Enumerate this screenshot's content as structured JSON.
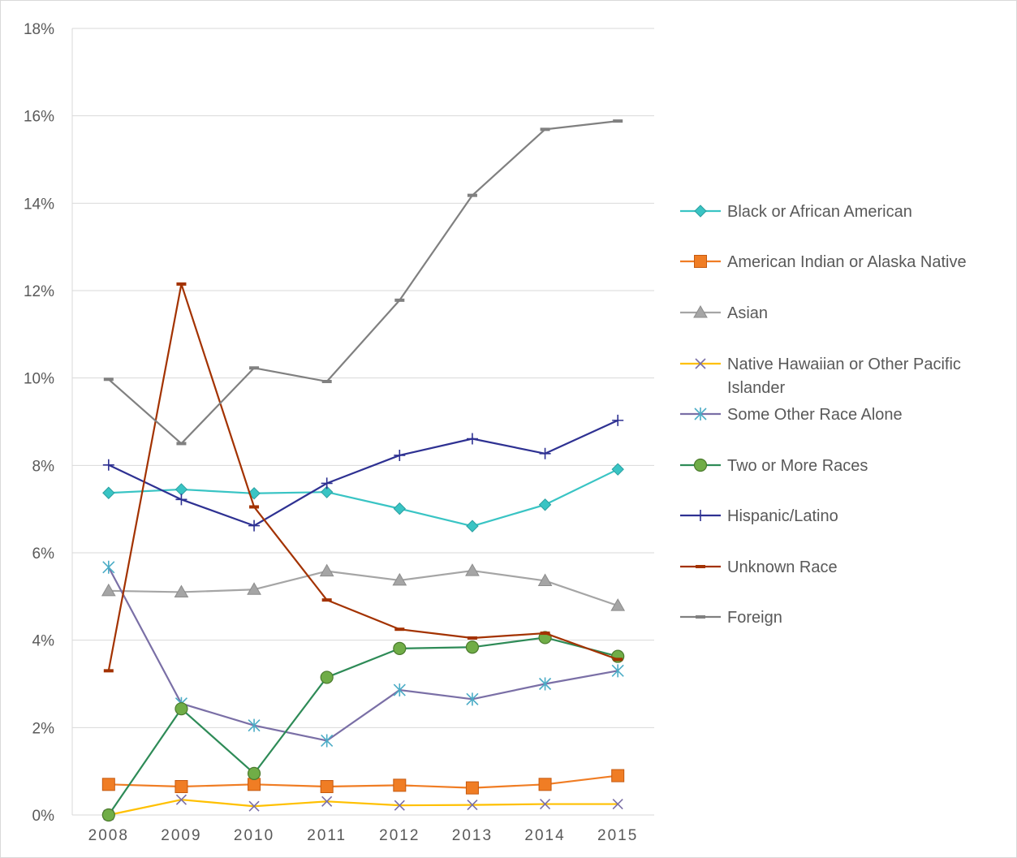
{
  "chart_data": {
    "type": "line",
    "title": "",
    "xlabel": "",
    "ylabel": "",
    "x": [
      "2008",
      "2009",
      "2010",
      "2011",
      "2012",
      "2013",
      "2014",
      "2015"
    ],
    "ylim": [
      0,
      0.18
    ],
    "yticks": [
      0,
      0.02,
      0.04,
      0.06,
      0.08,
      0.1,
      0.12,
      0.14,
      0.16,
      0.18
    ],
    "ytick_labels": [
      "0%",
      "2%",
      "4%",
      "6%",
      "8%",
      "10%",
      "12%",
      "14%",
      "16%",
      "18%"
    ],
    "grid": "horizontal",
    "legend_position": "right",
    "series": [
      {
        "name": "Black or African American",
        "color": "#39c4c4",
        "marker": "diamond",
        "values": [
          0.0737,
          0.0745,
          0.0736,
          0.0739,
          0.0701,
          0.0661,
          0.071,
          0.0791
        ]
      },
      {
        "name": "American Indian or Alaska Native",
        "color": "#f07d24",
        "marker": "square",
        "values": [
          0.007,
          0.0065,
          0.007,
          0.0065,
          0.0068,
          0.0062,
          0.007,
          0.009
        ]
      },
      {
        "name": "Asian",
        "color": "#a5a5a5",
        "marker": "triangle",
        "values": [
          0.0513,
          0.051,
          0.0516,
          0.0558,
          0.0537,
          0.0559,
          0.0536,
          0.0479
        ]
      },
      {
        "name": "Native Hawaiian or Other Pacific Islander",
        "color": "#ffc000",
        "marker": "x",
        "marker_color": "#7a6fa6",
        "values": [
          0.0,
          0.0035,
          0.002,
          0.0031,
          0.0022,
          0.0023,
          0.0025,
          0.0025
        ]
      },
      {
        "name": "Some Other Race Alone",
        "color": "#7a6fa6",
        "marker": "star",
        "marker_color": "#4bacc6",
        "values": [
          0.0567,
          0.0255,
          0.0205,
          0.017,
          0.0286,
          0.0265,
          0.03,
          0.033
        ]
      },
      {
        "name": "Two or More Races",
        "color": "#2e8b57",
        "marker": "circle",
        "marker_color": "#70ad47",
        "values": [
          0.0,
          0.0243,
          0.0095,
          0.0315,
          0.0381,
          0.0384,
          0.0406,
          0.0363
        ]
      },
      {
        "name": "Hispanic/Latino",
        "color": "#2e3192",
        "marker": "plus",
        "values": [
          0.0801,
          0.0722,
          0.0662,
          0.0759,
          0.0823,
          0.0861,
          0.0827,
          0.0903
        ]
      },
      {
        "name": "Unknown Race",
        "color": "#a33200",
        "marker": "dash",
        "values": [
          0.033,
          0.1215,
          0.0705,
          0.0492,
          0.0425,
          0.0405,
          0.0416,
          0.0356
        ]
      },
      {
        "name": "Foreign",
        "color": "#808080",
        "marker": "dash",
        "values": [
          0.0997,
          0.085,
          0.1023,
          0.0992,
          0.1178,
          0.1418,
          0.1569,
          0.1588
        ]
      }
    ]
  }
}
